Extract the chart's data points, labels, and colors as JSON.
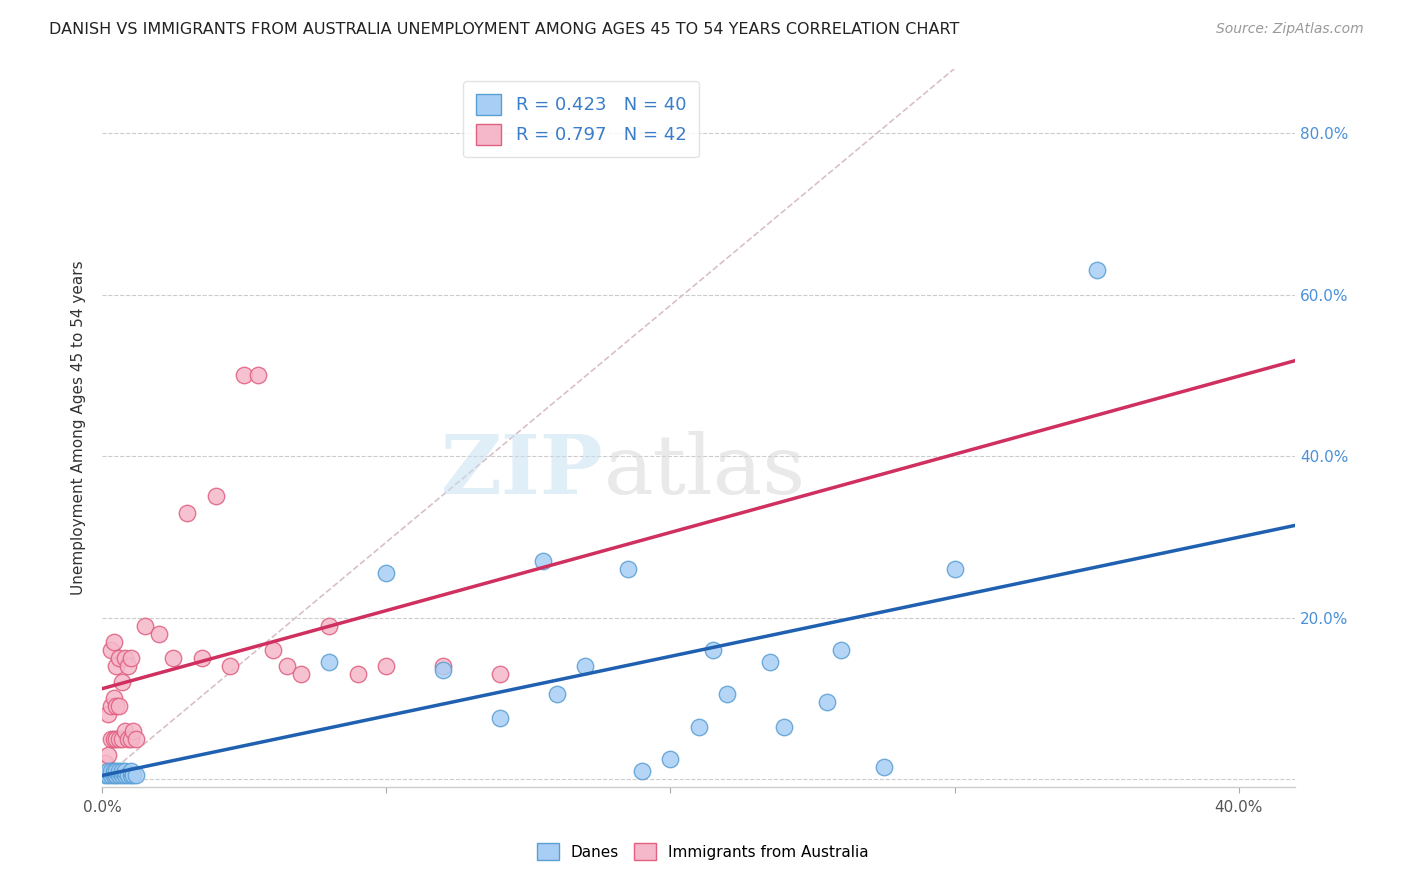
{
  "title": "DANISH VS IMMIGRANTS FROM AUSTRALIA UNEMPLOYMENT AMONG AGES 45 TO 54 YEARS CORRELATION CHART",
  "source": "Source: ZipAtlas.com",
  "ylabel": "Unemployment Among Ages 45 to 54 years",
  "xlim": [
    0.0,
    0.42
  ],
  "ylim": [
    -0.01,
    0.88
  ],
  "xticks": [
    0.0,
    0.1,
    0.2,
    0.3,
    0.4
  ],
  "xtick_labels": [
    "0.0%",
    "",
    "",
    "",
    "40.0%"
  ],
  "yticks": [
    0.0,
    0.2,
    0.4,
    0.6,
    0.8
  ],
  "ytick_labels_right": [
    "",
    "20.0%",
    "40.0%",
    "60.0%",
    "80.0%"
  ],
  "danes_color": "#a8cef5",
  "immigrants_color": "#f5b8ca",
  "danes_edge": "#5a9fd4",
  "immigrants_edge": "#e06080",
  "trendline_danes": "#2060b0",
  "trendline_imm": "#d03060",
  "refline_color": "#d0b0b8",
  "R_danes": 0.423,
  "N_danes": 40,
  "R_imm": 0.797,
  "N_imm": 42,
  "legend_label_danes": "Danes",
  "legend_label_imm": "Immigrants from Australia",
  "danes_x": [
    0.001,
    0.002,
    0.002,
    0.003,
    0.003,
    0.004,
    0.004,
    0.005,
    0.005,
    0.006,
    0.006,
    0.007,
    0.007,
    0.008,
    0.008,
    0.009,
    0.01,
    0.01,
    0.011,
    0.012,
    0.08,
    0.1,
    0.12,
    0.14,
    0.155,
    0.16,
    0.17,
    0.185,
    0.19,
    0.2,
    0.21,
    0.215,
    0.22,
    0.235,
    0.24,
    0.255,
    0.26,
    0.275,
    0.3,
    0.35
  ],
  "danes_y": [
    0.005,
    0.005,
    0.01,
    0.005,
    0.01,
    0.005,
    0.01,
    0.005,
    0.01,
    0.005,
    0.01,
    0.005,
    0.01,
    0.005,
    0.01,
    0.005,
    0.005,
    0.01,
    0.005,
    0.005,
    0.145,
    0.255,
    0.135,
    0.075,
    0.27,
    0.105,
    0.14,
    0.26,
    0.01,
    0.025,
    0.065,
    0.16,
    0.105,
    0.145,
    0.065,
    0.095,
    0.16,
    0.015,
    0.26,
    0.63
  ],
  "imm_x": [
    0.001,
    0.002,
    0.002,
    0.003,
    0.003,
    0.003,
    0.004,
    0.004,
    0.004,
    0.005,
    0.005,
    0.005,
    0.006,
    0.006,
    0.006,
    0.007,
    0.007,
    0.008,
    0.008,
    0.009,
    0.009,
    0.01,
    0.01,
    0.011,
    0.012,
    0.015,
    0.02,
    0.025,
    0.03,
    0.035,
    0.04,
    0.045,
    0.05,
    0.055,
    0.06,
    0.065,
    0.07,
    0.08,
    0.09,
    0.1,
    0.12,
    0.14
  ],
  "imm_y": [
    0.02,
    0.03,
    0.08,
    0.05,
    0.09,
    0.16,
    0.05,
    0.1,
    0.17,
    0.05,
    0.09,
    0.14,
    0.05,
    0.09,
    0.15,
    0.05,
    0.12,
    0.06,
    0.15,
    0.05,
    0.14,
    0.05,
    0.15,
    0.06,
    0.05,
    0.19,
    0.18,
    0.15,
    0.33,
    0.15,
    0.35,
    0.14,
    0.5,
    0.5,
    0.16,
    0.14,
    0.13,
    0.19,
    0.13,
    0.14,
    0.14,
    0.13
  ]
}
